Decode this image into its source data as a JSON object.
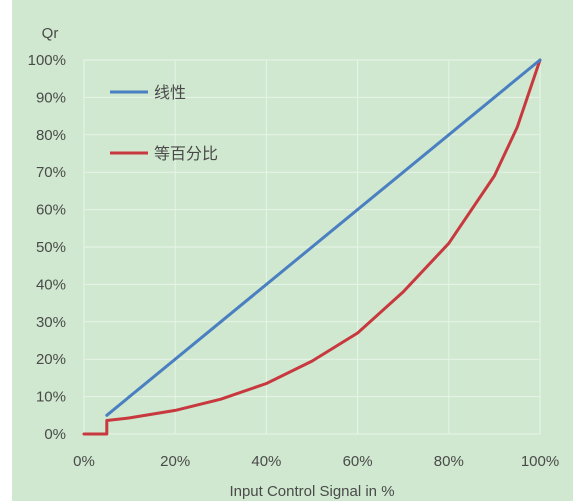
{
  "chart_data": {
    "type": "line",
    "xlabel": "Input Control Signal in %",
    "ylabel": "Qr",
    "xlim": [
      0,
      100
    ],
    "ylim": [
      0,
      100
    ],
    "x_ticks": [
      "0%",
      "20%",
      "40%",
      "60%",
      "80%",
      "100%"
    ],
    "x_tick_values": [
      0,
      20,
      40,
      60,
      80,
      100
    ],
    "y_ticks": [
      "0%",
      "10%",
      "20%",
      "30%",
      "40%",
      "50%",
      "60%",
      "70%",
      "80%",
      "90%",
      "100%"
    ],
    "y_tick_values": [
      0,
      10,
      20,
      30,
      40,
      50,
      60,
      70,
      80,
      90,
      100
    ],
    "grid": true,
    "legend_position": "top-left",
    "background_color": "#cfe8cf",
    "series": [
      {
        "name": "线性",
        "color": "#4a7fc1",
        "x": [
          5,
          100
        ],
        "y": [
          5,
          100
        ]
      },
      {
        "name": "等百分比",
        "color": "#c8393f",
        "x": [
          0,
          5,
          5,
          10,
          20,
          30,
          40,
          50,
          60,
          70,
          80,
          90,
          95,
          100
        ],
        "y": [
          0,
          0,
          3.6,
          4.3,
          6.3,
          9.3,
          13.5,
          19.5,
          27,
          38,
          51,
          69,
          82,
          100
        ]
      }
    ]
  }
}
